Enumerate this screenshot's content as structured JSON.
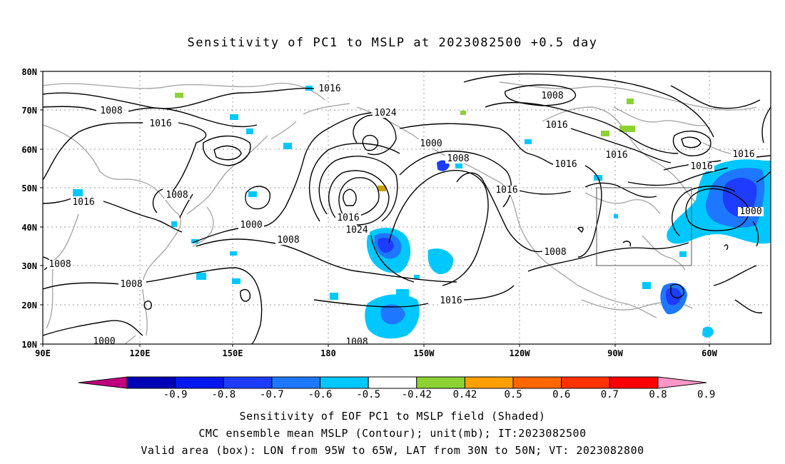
{
  "title": "Sensitivity of PC1 to MSLP at 2023082500 +0.5 day",
  "lat_labels": [
    "80N",
    "70N",
    "60N",
    "50N",
    "40N",
    "30N",
    "20N",
    "10N"
  ],
  "lon_labels": [
    "90E",
    "120E",
    "150E",
    "180",
    "150W",
    "120W",
    "90W",
    "60W"
  ],
  "contour_labels": [
    "1016",
    "1008",
    "1016",
    "1008",
    "1016",
    "1000",
    "1008",
    "1016",
    "1024",
    "1024",
    "1000",
    "1008",
    "1016",
    "1008",
    "1016",
    "1016",
    "1008",
    "1016",
    "1016",
    "1016",
    "1016",
    "1000",
    "1008",
    "1008",
    "1000",
    "1008"
  ],
  "colorbar": {
    "ticks": [
      "-0.9",
      "-0.8",
      "-0.7",
      "-0.6",
      "-0.5",
      "-0.42",
      "0.42",
      "0.5",
      "0.6",
      "0.7",
      "0.8",
      "0.9"
    ],
    "colors": [
      "#c0007e",
      "#0000b4",
      "#0018f0",
      "#1e3cff",
      "#1e78ff",
      "#00c8ff",
      "#ffffff",
      "#8cd232",
      "#ffa000",
      "#ff6600",
      "#ff3200",
      "#ff0000",
      "#ff96c8"
    ]
  },
  "captions": [
    "Sensitivity of EOF PC1 to MSLP field (Shaded)",
    "CMC ensemble mean MSLP (Contour); unit(mb); IT:2023082500",
    "Valid area (box): LON from 95W to 65W, LAT from 30N to 50N; VT: 2023082800"
  ],
  "colors": {
    "contour": "#000000",
    "coast": "#a8a8a8",
    "grid": "#999999"
  }
}
